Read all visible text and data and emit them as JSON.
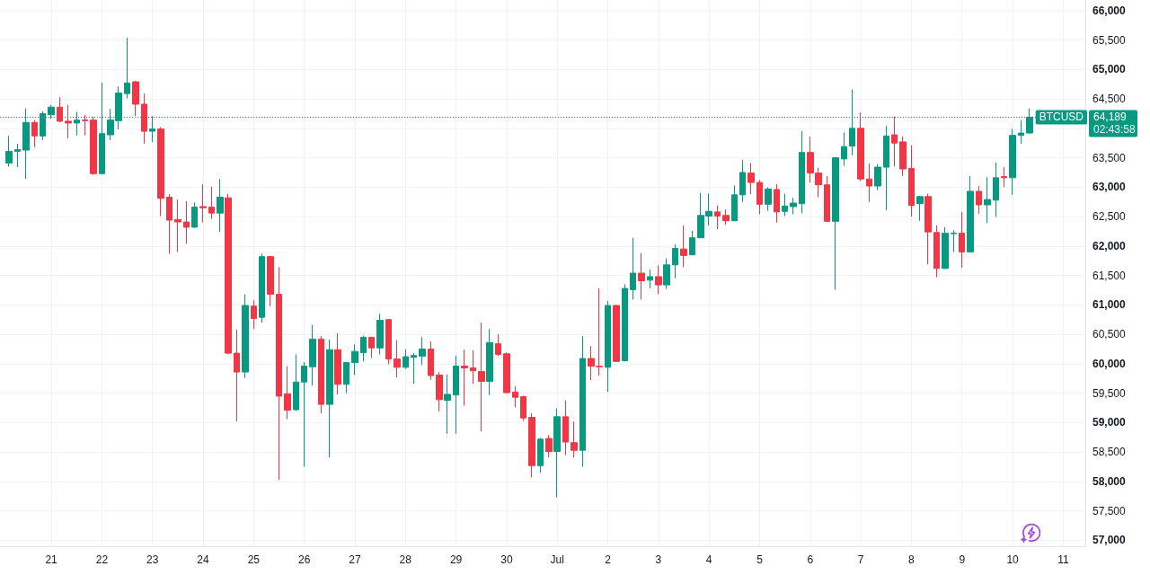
{
  "chart_data": {
    "type": "candlestick",
    "x": [
      "--06-20T04:00",
      "--06-20T08:00",
      "--06-20T12:00",
      "--06-20T16:00",
      "--06-20T20:00",
      "--06-21T00:00",
      "--06-21T04:00",
      "--06-21T08:00",
      "--06-21T12:00",
      "--06-21T16:00",
      "--06-21T20:00",
      "--06-22T00:00",
      "--06-22T04:00",
      "--06-22T08:00",
      "--06-22T12:00",
      "--06-22T16:00",
      "--06-22T20:00",
      "--06-23T00:00",
      "--06-23T04:00",
      "--06-23T08:00",
      "--06-23T12:00",
      "--06-23T16:00",
      "--06-23T20:00",
      "--06-24T00:00",
      "--06-24T04:00",
      "--06-24T08:00",
      "--06-24T12:00",
      "--06-24T16:00",
      "--06-24T20:00",
      "--06-25T00:00",
      "--06-25T04:00",
      "--06-25T08:00",
      "--06-25T12:00",
      "--06-25T16:00",
      "--06-25T20:00",
      "--06-26T00:00",
      "--06-26T04:00",
      "--06-26T08:00",
      "--06-26T12:00",
      "--06-26T16:00",
      "--06-26T20:00",
      "--06-27T00:00",
      "--06-27T04:00",
      "--06-27T08:00",
      "--06-27T12:00",
      "--06-27T16:00",
      "--06-27T20:00",
      "--06-28T00:00",
      "--06-28T04:00",
      "--06-28T08:00",
      "--06-28T12:00",
      "--06-28T16:00",
      "--06-28T20:00",
      "--06-29T00:00",
      "--06-29T04:00",
      "--06-29T08:00",
      "--06-29T12:00",
      "--06-29T16:00",
      "--06-29T20:00",
      "--06-30T00:00",
      "--06-30T04:00",
      "--06-30T08:00",
      "--06-30T12:00",
      "--06-30T16:00",
      "--06-30T20:00",
      "--07-01T00:00",
      "--07-01T04:00",
      "--07-01T08:00",
      "--07-01T12:00",
      "--07-01T16:00",
      "--07-01T20:00",
      "--07-02T00:00",
      "--07-02T04:00",
      "--07-02T08:00",
      "--07-02T12:00",
      "--07-02T16:00",
      "--07-02T20:00",
      "--07-03T00:00",
      "--07-03T04:00",
      "--07-03T08:00",
      "--07-03T12:00",
      "--07-03T16:00",
      "--07-03T20:00",
      "--07-04T00:00",
      "--07-04T04:00",
      "--07-04T08:00",
      "--07-04T12:00",
      "--07-04T16:00",
      "--07-04T20:00",
      "--07-05T00:00",
      "--07-05T04:00",
      "--07-05T08:00",
      "--07-05T12:00",
      "--07-05T16:00",
      "--07-05T20:00",
      "--07-06T00:00",
      "--07-06T04:00",
      "--07-06T08:00",
      "--07-06T12:00",
      "--07-06T16:00",
      "--07-06T20:00",
      "--07-07T00:00",
      "--07-07T04:00",
      "--07-07T08:00",
      "--07-07T12:00",
      "--07-07T16:00",
      "--07-07T20:00",
      "--07-08T00:00",
      "--07-08T04:00",
      "--07-08T08:00",
      "--07-08T12:00",
      "--07-08T16:00",
      "--07-08T20:00",
      "--07-09T00:00",
      "--07-09T04:00",
      "--07-09T08:00",
      "--07-09T12:00",
      "--07-09T16:00",
      "--07-09T20:00",
      "--07-10T00:00",
      "--07-10T04:00",
      "--07-10T08:00"
    ],
    "ohlc": [
      [
        63410,
        63870,
        63350,
        63610
      ],
      [
        63610,
        63740,
        63340,
        63640
      ],
      [
        63630,
        64340,
        63140,
        64100
      ],
      [
        64100,
        64140,
        63680,
        63870
      ],
      [
        63870,
        64290,
        63800,
        64250
      ],
      [
        64230,
        64400,
        64160,
        64360
      ],
      [
        64360,
        64530,
        64100,
        64120
      ],
      [
        64120,
        64400,
        63830,
        64090
      ],
      [
        64090,
        64280,
        63880,
        64140
      ],
      [
        64140,
        64230,
        63880,
        64130
      ],
      [
        64140,
        64200,
        63210,
        63230
      ],
      [
        63230,
        64780,
        63220,
        63910
      ],
      [
        63890,
        64330,
        63800,
        64140
      ],
      [
        64130,
        64710,
        63980,
        64600
      ],
      [
        64590,
        65540,
        64510,
        64770
      ],
      [
        64790,
        64810,
        64210,
        64410
      ],
      [
        64410,
        64590,
        63740,
        63950
      ],
      [
        63950,
        64210,
        63770,
        63990
      ],
      [
        63990,
        64020,
        62510,
        62810
      ],
      [
        62830,
        62880,
        61870,
        62440
      ],
      [
        62450,
        62790,
        61900,
        62410
      ],
      [
        62410,
        62760,
        62040,
        62320
      ],
      [
        62320,
        62740,
        62310,
        62660
      ],
      [
        62670,
        63050,
        62400,
        62650
      ],
      [
        62660,
        63010,
        62460,
        62560
      ],
      [
        62560,
        63140,
        62240,
        62830
      ],
      [
        62820,
        62890,
        60160,
        60180
      ],
      [
        60180,
        60580,
        59020,
        59860
      ],
      [
        59860,
        61180,
        59760,
        60990
      ],
      [
        60980,
        61080,
        60590,
        60770
      ],
      [
        60790,
        61870,
        60700,
        61820
      ],
      [
        61820,
        61830,
        60980,
        61180
      ],
      [
        61180,
        61640,
        58030,
        59450
      ],
      [
        59490,
        59960,
        59060,
        59210
      ],
      [
        59220,
        60160,
        59200,
        59690
      ],
      [
        59690,
        60030,
        58250,
        59960
      ],
      [
        59950,
        60660,
        59630,
        60420
      ],
      [
        60420,
        60470,
        59160,
        59310
      ],
      [
        59310,
        60410,
        58410,
        60240
      ],
      [
        60240,
        60520,
        59480,
        59650
      ],
      [
        59650,
        60030,
        59500,
        60020
      ],
      [
        60020,
        60330,
        59810,
        60210
      ],
      [
        60190,
        60480,
        60040,
        60450
      ],
      [
        60450,
        60460,
        60100,
        60270
      ],
      [
        60270,
        60850,
        60160,
        60740
      ],
      [
        60750,
        60760,
        59990,
        60080
      ],
      [
        60080,
        60400,
        59770,
        59940
      ],
      [
        59940,
        60250,
        59910,
        60120
      ],
      [
        60110,
        60180,
        59660,
        60140
      ],
      [
        60130,
        60450,
        59980,
        60250
      ],
      [
        60250,
        60380,
        59730,
        59800
      ],
      [
        59810,
        59860,
        59190,
        59390
      ],
      [
        59380,
        59820,
        58810,
        59480
      ],
      [
        59470,
        60140,
        58810,
        59960
      ],
      [
        59960,
        60240,
        59290,
        59930
      ],
      [
        59930,
        60230,
        59660,
        59880
      ],
      [
        59870,
        60700,
        58850,
        59700
      ],
      [
        59700,
        60590,
        59470,
        60360
      ],
      [
        60340,
        60500,
        60130,
        60160
      ],
      [
        60170,
        60190,
        59500,
        59510
      ],
      [
        59520,
        59620,
        59260,
        59430
      ],
      [
        59440,
        59460,
        59030,
        59080
      ],
      [
        59090,
        59160,
        58070,
        58270
      ],
      [
        58270,
        58740,
        58150,
        58720
      ],
      [
        58730,
        58790,
        58410,
        58510
      ],
      [
        58510,
        59240,
        57730,
        59100
      ],
      [
        59100,
        59380,
        58450,
        58670
      ],
      [
        58660,
        59020,
        58410,
        58530
      ],
      [
        58530,
        60470,
        58250,
        60090
      ],
      [
        60090,
        60300,
        59720,
        59960
      ],
      [
        59960,
        61280,
        59800,
        59950
      ],
      [
        59940,
        61070,
        59520,
        60990
      ],
      [
        60990,
        61000,
        60030,
        60040
      ],
      [
        60050,
        61350,
        60040,
        61280
      ],
      [
        61260,
        62140,
        61090,
        61540
      ],
      [
        61540,
        61880,
        61090,
        61410
      ],
      [
        61420,
        61600,
        61280,
        61480
      ],
      [
        61480,
        61670,
        61180,
        61340
      ],
      [
        61340,
        61790,
        61270,
        61680
      ],
      [
        61680,
        62030,
        61450,
        61960
      ],
      [
        61950,
        62350,
        61640,
        61840
      ],
      [
        61850,
        62260,
        61850,
        62140
      ],
      [
        62140,
        62900,
        62140,
        62520
      ],
      [
        62510,
        62890,
        62350,
        62590
      ],
      [
        62580,
        62690,
        62290,
        62510
      ],
      [
        62520,
        62620,
        62360,
        62430
      ],
      [
        62430,
        63030,
        62420,
        62870
      ],
      [
        62870,
        63460,
        62750,
        63250
      ],
      [
        63240,
        63410,
        62880,
        63080
      ],
      [
        63080,
        63120,
        62540,
        62710
      ],
      [
        62710,
        63000,
        62600,
        62970
      ],
      [
        62960,
        63050,
        62400,
        62580
      ],
      [
        62590,
        62890,
        62510,
        62680
      ],
      [
        62670,
        62820,
        62540,
        62730
      ],
      [
        62720,
        63950,
        62560,
        63590
      ],
      [
        63590,
        63860,
        63080,
        63240
      ],
      [
        63240,
        63330,
        62830,
        63040
      ],
      [
        63040,
        63190,
        62410,
        62420
      ],
      [
        62420,
        63500,
        61260,
        63500
      ],
      [
        63480,
        63930,
        63360,
        63690
      ],
      [
        63700,
        64660,
        63540,
        64000
      ],
      [
        64000,
        64270,
        63100,
        63140
      ],
      [
        63140,
        63400,
        62750,
        63020
      ],
      [
        63020,
        63390,
        62950,
        63340
      ],
      [
        63340,
        64040,
        62610,
        63870
      ],
      [
        63890,
        64200,
        63350,
        63750
      ],
      [
        63770,
        63860,
        63190,
        63310
      ],
      [
        63320,
        63710,
        62500,
        62690
      ],
      [
        62720,
        62850,
        62430,
        62840
      ],
      [
        62840,
        62890,
        61690,
        62240
      ],
      [
        62230,
        62350,
        61470,
        61620
      ],
      [
        61620,
        62320,
        61610,
        62220
      ],
      [
        62210,
        62270,
        61900,
        62220
      ],
      [
        62220,
        62580,
        61630,
        61900
      ],
      [
        61900,
        63190,
        61890,
        62930
      ],
      [
        62930,
        63020,
        62550,
        62700
      ],
      [
        62700,
        63170,
        62390,
        62790
      ],
      [
        62780,
        63420,
        62490,
        63160
      ],
      [
        63180,
        63340,
        63000,
        63160
      ],
      [
        63160,
        63990,
        62870,
        63880
      ],
      [
        63880,
        64140,
        63740,
        63920
      ],
      [
        63920,
        64340,
        63910,
        64189
      ]
    ],
    "colors": [
      "#089981",
      "#089981",
      "#089981",
      "#f23645",
      "#089981",
      "#089981",
      "#f23645",
      "#f23645",
      "#089981",
      "#f23645",
      "#f23645",
      "#089981",
      "#089981",
      "#089981",
      "#089981",
      "#f23645",
      "#f23645",
      "#089981",
      "#f23645",
      "#f23645",
      "#f23645",
      "#f23645",
      "#089981",
      "#f23645",
      "#f23645",
      "#089981",
      "#f23645",
      "#f23645",
      "#089981",
      "#f23645",
      "#089981",
      "#f23645",
      "#f23645",
      "#f23645",
      "#089981",
      "#089981",
      "#089981",
      "#f23645",
      "#089981",
      "#f23645",
      "#089981",
      "#089981",
      "#089981",
      "#f23645",
      "#089981",
      "#f23645",
      "#f23645",
      "#089981",
      "#089981",
      "#089981",
      "#f23645",
      "#f23645",
      "#089981",
      "#089981",
      "#f23645",
      "#f23645",
      "#f23645",
      "#089981",
      "#f23645",
      "#f23645",
      "#f23645",
      "#f23645",
      "#f23645",
      "#089981",
      "#f23645",
      "#089981",
      "#f23645",
      "#f23645",
      "#089981",
      "#f23645",
      "#f23645",
      "#089981",
      "#f23645",
      "#089981",
      "#089981",
      "#f23645",
      "#089981",
      "#f23645",
      "#089981",
      "#089981",
      "#f23645",
      "#089981",
      "#089981",
      "#089981",
      "#f23645",
      "#f23645",
      "#089981",
      "#089981",
      "#f23645",
      "#f23645",
      "#089981",
      "#f23645",
      "#089981",
      "#089981",
      "#089981",
      "#f23645",
      "#f23645",
      "#f23645",
      "#089981",
      "#089981",
      "#089981",
      "#f23645",
      "#f23645",
      "#089981",
      "#089981",
      "#f23645",
      "#f23645",
      "#f23645",
      "#089981",
      "#f23645",
      "#f23645",
      "#089981",
      "#089981",
      "#f23645",
      "#089981",
      "#f23645",
      "#089981",
      "#089981",
      "#f23645",
      "#089981",
      "#089981",
      "#089981"
    ],
    "xlim": [
      "--06-19T23:40",
      "--07-11T10:30"
    ],
    "xticks": [
      {
        "value": "--06-21",
        "label": "21"
      },
      {
        "value": "--06-22",
        "label": "22"
      },
      {
        "value": "--06-23",
        "label": "23"
      },
      {
        "value": "--06-24",
        "label": "24"
      },
      {
        "value": "--06-25",
        "label": "25"
      },
      {
        "value": "--06-26",
        "label": "26"
      },
      {
        "value": "--06-27",
        "label": "27"
      },
      {
        "value": "--06-28",
        "label": "28"
      },
      {
        "value": "--06-29",
        "label": "29"
      },
      {
        "value": "--06-30",
        "label": "30"
      },
      {
        "value": "--07-01",
        "label": "Jul"
      },
      {
        "value": "--07-02",
        "label": "2"
      },
      {
        "value": "--07-03",
        "label": "3"
      },
      {
        "value": "--07-04",
        "label": "4"
      },
      {
        "value": "--07-05",
        "label": "5"
      },
      {
        "value": "--07-06",
        "label": "6"
      },
      {
        "value": "--07-07",
        "label": "7"
      },
      {
        "value": "--07-08",
        "label": "8"
      },
      {
        "value": "--07-09",
        "label": "9"
      },
      {
        "value": "--07-10",
        "label": "10"
      },
      {
        "value": "--07-11",
        "label": "11"
      }
    ],
    "ylim": [
      56900,
      66180
    ],
    "yticks": [
      {
        "value": 57000,
        "label": "57,000"
      },
      {
        "value": 57500,
        "label": "57,500"
      },
      {
        "value": 58000,
        "label": "58,000"
      },
      {
        "value": 58500,
        "label": "58,500"
      },
      {
        "value": 59000,
        "label": "59,000"
      },
      {
        "value": 59500,
        "label": "59,500"
      },
      {
        "value": 60000,
        "label": "60,000"
      },
      {
        "value": 60500,
        "label": "60,500"
      },
      {
        "value": 61000,
        "label": "61,000"
      },
      {
        "value": 61500,
        "label": "61,500"
      },
      {
        "value": 62000,
        "label": "62,000"
      },
      {
        "value": 62500,
        "label": "62,500"
      },
      {
        "value": 63000,
        "label": "63,000"
      },
      {
        "value": 63500,
        "label": "63,500"
      },
      {
        "value": 64000,
        "label": null
      },
      {
        "value": 64500,
        "label": "64,500"
      },
      {
        "value": 65000,
        "label": "65,000"
      },
      {
        "value": 65500,
        "label": "65,500"
      },
      {
        "value": 66000,
        "label": "66,000"
      }
    ],
    "grid": true,
    "ref_lines": [
      {
        "axis": "y",
        "value": 64189,
        "label": "64,189",
        "color": "#089981",
        "line_style": "dotted"
      }
    ],
    "annotations": [
      "BTCUSD",
      "02:43:58"
    ]
  }
}
